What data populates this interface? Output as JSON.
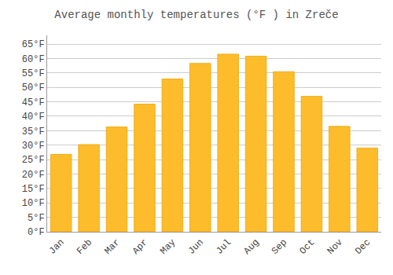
{
  "chart_data": {
    "type": "bar",
    "title": "Average monthly temperatures (°F ) in Zreče",
    "categories": [
      "Jan",
      "Feb",
      "Mar",
      "Apr",
      "May",
      "Jun",
      "Jul",
      "Aug",
      "Sep",
      "Oct",
      "Nov",
      "Dec"
    ],
    "values": [
      26.8,
      30.2,
      36.3,
      44.2,
      52.9,
      58.3,
      61.5,
      60.8,
      55.4,
      46.9,
      36.5,
      29.0
    ],
    "color": "#FDBC2C",
    "ylim": [
      0,
      68
    ],
    "yticks": [
      {
        "value": 0,
        "label": "0°F"
      },
      {
        "value": 5,
        "label": "5°F"
      },
      {
        "value": 10,
        "label": "10°F"
      },
      {
        "value": 15,
        "label": "15°F"
      },
      {
        "value": 20,
        "label": "20°F"
      },
      {
        "value": 25,
        "label": "25°F"
      },
      {
        "value": 30,
        "label": "30°F"
      },
      {
        "value": 35,
        "label": "35°F"
      },
      {
        "value": 40,
        "label": "40°F"
      },
      {
        "value": 45,
        "label": "45°F"
      },
      {
        "value": 50,
        "label": "50°F"
      },
      {
        "value": 55,
        "label": "55°F"
      },
      {
        "value": 60,
        "label": "60°F"
      },
      {
        "value": 65,
        "label": "65°F"
      }
    ],
    "grid": true
  }
}
